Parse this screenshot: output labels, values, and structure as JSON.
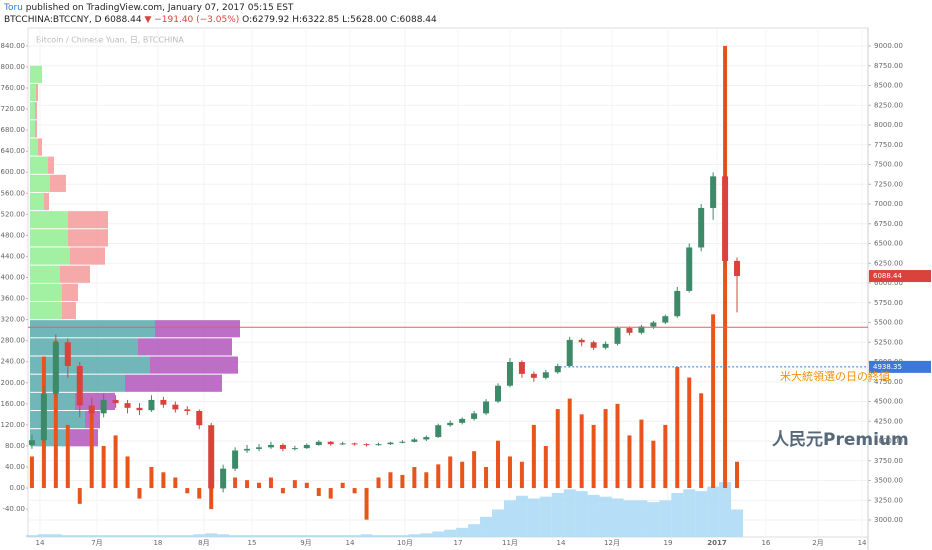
{
  "header": {
    "author": "Toru",
    "published": " published on TradingView.com, January 07, 2017 05:15 EST",
    "symbol": "BTCCHINA:BTCCNY, D 6088.44",
    "change": "▼ −191.40 (−3.05%)",
    "ohlc": "O:6279.92 H:6322.85 L:5628.00 C:6088.44"
  },
  "chart_data": {
    "type": "candlestick",
    "title": "Bitcoin / Chinese Yuan, 日, BTCCHINA",
    "up_color": "#3d8a68",
    "down_color": "#d9433b",
    "ohlc": [
      [
        3950,
        4080,
        3900,
        4010
      ],
      [
        4010,
        4700,
        3980,
        4600
      ],
      [
        4600,
        5350,
        4550,
        5250
      ],
      [
        5250,
        5300,
        4800,
        4950
      ],
      [
        4950,
        5000,
        4300,
        4450
      ],
      [
        4450,
        4550,
        4250,
        4350
      ],
      [
        4350,
        4600,
        4300,
        4520
      ],
      [
        4520,
        4580,
        4420,
        4480
      ],
      [
        4480,
        4520,
        4350,
        4420
      ],
      [
        4420,
        4480,
        4330,
        4390
      ],
      [
        4390,
        4580,
        4370,
        4520
      ],
      [
        4520,
        4560,
        4420,
        4460
      ],
      [
        4460,
        4500,
        4360,
        4400
      ],
      [
        4400,
        4440,
        4330,
        4380
      ],
      [
        4380,
        4400,
        4150,
        4200
      ],
      [
        4200,
        4230,
        3200,
        3400
      ],
      [
        3400,
        3700,
        3350,
        3650
      ],
      [
        3650,
        3920,
        3620,
        3880
      ],
      [
        3880,
        3950,
        3850,
        3900
      ],
      [
        3900,
        3960,
        3870,
        3920
      ],
      [
        3920,
        3990,
        3900,
        3950
      ],
      [
        3950,
        3970,
        3870,
        3900
      ],
      [
        3900,
        3940,
        3880,
        3910
      ],
      [
        3910,
        3970,
        3900,
        3950
      ],
      [
        3950,
        4010,
        3940,
        3990
      ],
      [
        3990,
        4000,
        3940,
        3960
      ],
      [
        3960,
        3990,
        3950,
        3970
      ],
      [
        3970,
        3980,
        3940,
        3960
      ],
      [
        3960,
        3970,
        3930,
        3950
      ],
      [
        3950,
        3980,
        3940,
        3960
      ],
      [
        3960,
        3990,
        3950,
        3980
      ],
      [
        3980,
        4010,
        3970,
        3990
      ],
      [
        3990,
        4040,
        3980,
        4020
      ],
      [
        4020,
        4070,
        4000,
        4050
      ],
      [
        4050,
        4220,
        4040,
        4200
      ],
      [
        4200,
        4260,
        4180,
        4230
      ],
      [
        4230,
        4300,
        4210,
        4280
      ],
      [
        4280,
        4380,
        4260,
        4350
      ],
      [
        4350,
        4530,
        4330,
        4500
      ],
      [
        4500,
        4730,
        4480,
        4700
      ],
      [
        4700,
        5050,
        4680,
        5000
      ],
      [
        5000,
        5020,
        4800,
        4850
      ],
      [
        4850,
        4880,
        4750,
        4800
      ],
      [
        4800,
        4900,
        4780,
        4870
      ],
      [
        4870,
        4980,
        4850,
        4950
      ],
      [
        4950,
        5320,
        4930,
        5280
      ],
      [
        5280,
        5300,
        5200,
        5250
      ],
      [
        5250,
        5270,
        5150,
        5180
      ],
      [
        5180,
        5260,
        5160,
        5230
      ],
      [
        5230,
        5450,
        5210,
        5430
      ],
      [
        5430,
        5450,
        5340,
        5370
      ],
      [
        5370,
        5470,
        5350,
        5450
      ],
      [
        5450,
        5520,
        5420,
        5500
      ],
      [
        5500,
        5600,
        5480,
        5580
      ],
      [
        5580,
        5950,
        5560,
        5900
      ],
      [
        5900,
        6500,
        5880,
        6450
      ],
      [
        6450,
        7000,
        6400,
        6950
      ],
      [
        6950,
        7400,
        6800,
        7350
      ],
      [
        7350,
        8950,
        6200,
        6279.92
      ],
      [
        6279.92,
        6322.85,
        5628,
        6088.44
      ]
    ],
    "xlim": [
      -0.33,
      69.96
    ],
    "xticks": [
      {
        "value": 0.67,
        "label": "14"
      },
      {
        "value": 5.44,
        "label": "7月"
      },
      {
        "value": 10.54,
        "label": "18"
      },
      {
        "value": 14.39,
        "label": "8月"
      },
      {
        "value": 18.41,
        "label": "15"
      },
      {
        "value": 22.93,
        "label": "9月"
      },
      {
        "value": 26.61,
        "label": "14"
      },
      {
        "value": 31.21,
        "label": "10月"
      },
      {
        "value": 35.65,
        "label": "17"
      },
      {
        "value": 40,
        "label": "11月"
      },
      {
        "value": 44.27,
        "label": "14"
      },
      {
        "value": 48.54,
        "label": "12月"
      },
      {
        "value": 53.22,
        "label": "19"
      },
      {
        "value": 57.32,
        "label": "2017"
      },
      {
        "value": 61.42,
        "label": "16"
      },
      {
        "value": 65.77,
        "label": "2月"
      },
      {
        "value": 69.46,
        "label": "14"
      }
    ],
    "ylim": [
      2785,
      9228
    ],
    "yticks": [
      {
        "value": 3000,
        "label": "3000.00"
      },
      {
        "value": 3250,
        "label": "3250.00"
      },
      {
        "value": 3500,
        "label": "3500.00"
      },
      {
        "value": 3750,
        "label": "3750.00"
      },
      {
        "value": 4000,
        "label": "4000.00"
      },
      {
        "value": 4250,
        "label": "4250.00"
      },
      {
        "value": 4500,
        "label": "4500.00"
      },
      {
        "value": 4750,
        "label": "4750.00"
      },
      {
        "value": 5000,
        "label": "5000.00"
      },
      {
        "value": 5250,
        "label": "5250.00"
      },
      {
        "value": 5500,
        "label": "5500.00"
      },
      {
        "value": 5750,
        "label": "5750.00"
      },
      {
        "value": 6000,
        "label": "6000.00"
      },
      {
        "value": 6250,
        "label": "6250.00"
      },
      {
        "value": 6500,
        "label": "6500.00"
      },
      {
        "value": 6750,
        "label": "6750.00"
      },
      {
        "value": 7000,
        "label": "7000.00"
      },
      {
        "value": 7250,
        "label": "7250.00"
      },
      {
        "value": 7500,
        "label": "7500.00"
      },
      {
        "value": 7750,
        "label": "7750.00"
      },
      {
        "value": 8000,
        "label": "8000.00"
      },
      {
        "value": 8250,
        "label": "8250.00"
      },
      {
        "value": 8500,
        "label": "8500.00"
      },
      {
        "value": 8750,
        "label": "8750.00"
      },
      {
        "value": 9000,
        "label": "9000.00"
      }
    ],
    "y2lim": [
      -93,
      874
    ],
    "y2ticks": [
      {
        "value": -40,
        "label": "-40.00"
      },
      {
        "value": 0,
        "label": "0.00"
      },
      {
        "value": 40,
        "label": "40.00"
      },
      {
        "value": 80,
        "label": "80.00"
      },
      {
        "value": 120,
        "label": "120.00"
      },
      {
        "value": 160,
        "label": "160.00"
      },
      {
        "value": 200,
        "label": "200.00"
      },
      {
        "value": 240,
        "label": "240.00"
      },
      {
        "value": 280,
        "label": "280.00"
      },
      {
        "value": 320,
        "label": "320.00"
      },
      {
        "value": 360,
        "label": "360.00"
      },
      {
        "value": 400,
        "label": "400.00"
      },
      {
        "value": 440,
        "label": "440.00"
      },
      {
        "value": 480,
        "label": "480.00"
      },
      {
        "value": 520,
        "label": "520.00"
      },
      {
        "value": 560,
        "label": "560.00"
      },
      {
        "value": 600,
        "label": "600.00"
      },
      {
        "value": 640,
        "label": "640.00"
      },
      {
        "value": 680,
        "label": "680.00"
      },
      {
        "value": 720,
        "label": "720.00"
      },
      {
        "value": 760,
        "label": "760.00"
      },
      {
        "value": 800,
        "label": "800.00"
      },
      {
        "value": 840,
        "label": "840.00"
      }
    ],
    "grid": true,
    "series": [
      {
        "name": "人民元Premium",
        "color": "#e8541b",
        "axis": "y2",
        "values": [
          60,
          250,
          280,
          120,
          -30,
          150,
          80,
          100,
          60,
          -20,
          40,
          30,
          20,
          -10,
          -20,
          -40,
          30,
          20,
          15,
          10,
          20,
          -10,
          15,
          10,
          -15,
          -20,
          10,
          -10,
          -60,
          20,
          30,
          25,
          40,
          30,
          45,
          60,
          50,
          70,
          40,
          90,
          60,
          50,
          120,
          80,
          150,
          170,
          140,
          120,
          150,
          160,
          100,
          130,
          90,
          120,
          230,
          210,
          180,
          330,
          840,
          50
        ]
      }
    ],
    "volume": {
      "color": "#a9d8f5",
      "values": [
        2,
        3,
        3,
        2,
        2,
        2,
        2,
        2,
        2,
        2,
        2,
        2,
        2,
        2,
        3,
        4,
        3,
        2,
        2,
        2,
        2,
        2,
        2,
        2,
        2,
        2,
        2,
        2,
        3,
        2,
        2,
        2,
        3,
        4,
        6,
        8,
        10,
        14,
        22,
        30,
        40,
        45,
        42,
        44,
        48,
        52,
        50,
        46,
        44,
        42,
        40,
        40,
        38,
        40,
        48,
        52,
        50,
        55,
        60,
        30
      ]
    },
    "volume_profile": {
      "up_color": "#98ee98",
      "down_color": "#f5a0a0",
      "va_up_color": "#62aeb0",
      "va_down_color": "#b55fbf",
      "rows": [
        {
          "lo": 3920,
          "hi": 4150,
          "up": 40,
          "down": 28,
          "va": true
        },
        {
          "lo": 4150,
          "hi": 4380,
          "up": 55,
          "down": 15,
          "va": true
        },
        {
          "lo": 4380,
          "hi": 4610,
          "up": 45,
          "down": 40,
          "va": true
        },
        {
          "lo": 4610,
          "hi": 4840,
          "up": 95,
          "down": 97,
          "va": true
        },
        {
          "lo": 4840,
          "hi": 5070,
          "up": 120,
          "down": 88,
          "va": true
        },
        {
          "lo": 5070,
          "hi": 5300,
          "up": 108,
          "down": 94,
          "va": true
        },
        {
          "lo": 5300,
          "hi": 5530,
          "up": 125,
          "down": 85,
          "va": true
        },
        {
          "lo": 5530,
          "hi": 5760,
          "up": 32,
          "down": 14,
          "va": false
        },
        {
          "lo": 5760,
          "hi": 5990,
          "up": 32,
          "down": 16,
          "va": false
        },
        {
          "lo": 5990,
          "hi": 6220,
          "up": 30,
          "down": 30,
          "va": false
        },
        {
          "lo": 6220,
          "hi": 6450,
          "up": 40,
          "down": 35,
          "va": false
        },
        {
          "lo": 6450,
          "hi": 6680,
          "up": 38,
          "down": 40,
          "va": false
        },
        {
          "lo": 6680,
          "hi": 6910,
          "up": 38,
          "down": 40,
          "va": false
        },
        {
          "lo": 6910,
          "hi": 7140,
          "up": 14,
          "down": 5,
          "va": false
        },
        {
          "lo": 7140,
          "hi": 7370,
          "up": 20,
          "down": 16,
          "va": false
        },
        {
          "lo": 7370,
          "hi": 7600,
          "up": 18,
          "down": 6,
          "va": false
        },
        {
          "lo": 7600,
          "hi": 7830,
          "up": 8,
          "down": 4,
          "va": false
        },
        {
          "lo": 7830,
          "hi": 8060,
          "up": 5,
          "down": 2,
          "va": false
        },
        {
          "lo": 8060,
          "hi": 8290,
          "up": 5,
          "down": 2,
          "va": false
        },
        {
          "lo": 8290,
          "hi": 8520,
          "up": 6,
          "down": 2,
          "va": false
        },
        {
          "lo": 8520,
          "hi": 8750,
          "up": 12,
          "down": 0,
          "va": false
        }
      ]
    },
    "hlines": [
      {
        "value": 5440,
        "color": "#e06060"
      },
      {
        "value": 4938.35,
        "label": "4938.35",
        "color": "#3c78d8",
        "x_start": 44.2,
        "dashed": true
      }
    ],
    "last_price": {
      "value": 6088.44,
      "label": "6088.44",
      "color": "#d9433b"
    },
    "annotations": [
      {
        "text": "米大統領選の日の終値",
        "color": "#f0900c"
      }
    ]
  }
}
